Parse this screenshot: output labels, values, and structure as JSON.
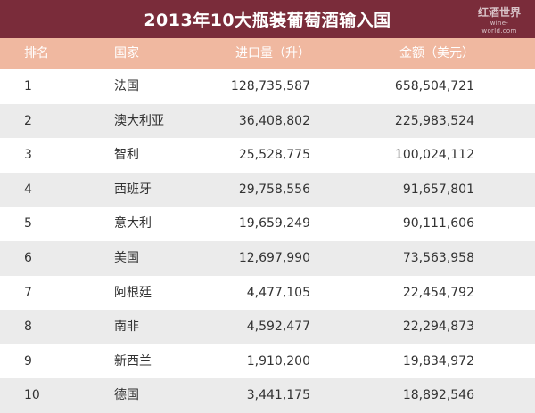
{
  "title": "2013年10大瓶装葡萄酒输入国",
  "logo": {
    "main": "红酒世界",
    "sub": "wine-world.com"
  },
  "columns": {
    "rank": "排名",
    "country": "国家",
    "import": "进口量（升）",
    "value": "金额（美元）"
  },
  "rows": [
    {
      "rank": "1",
      "country": "法国",
      "import": "128,735,587",
      "value": "658,504,721"
    },
    {
      "rank": "2",
      "country": "澳大利亚",
      "import": "36,408,802",
      "value": "225,983,524"
    },
    {
      "rank": "3",
      "country": "智利",
      "import": "25,528,775",
      "value": "100,024,112"
    },
    {
      "rank": "4",
      "country": "西班牙",
      "import": "29,758,556",
      "value": "91,657,801"
    },
    {
      "rank": "5",
      "country": "意大利",
      "import": "19,659,249",
      "value": "90,111,606"
    },
    {
      "rank": "6",
      "country": "美国",
      "import": "12,697,990",
      "value": "73,563,958"
    },
    {
      "rank": "7",
      "country": "阿根廷",
      "import": "4,477,105",
      "value": "22,454,792"
    },
    {
      "rank": "8",
      "country": "南非",
      "import": "4,592,477",
      "value": "22,294,873"
    },
    {
      "rank": "9",
      "country": "新西兰",
      "import": "1,910,200",
      "value": "19,834,972"
    },
    {
      "rank": "10",
      "country": "德国",
      "import": "3,441,175",
      "value": "18,892,546"
    }
  ],
  "colors": {
    "title_bg": "#7a2c3a",
    "header_bg": "#f0b8a0",
    "stripe": "#ebebeb"
  }
}
